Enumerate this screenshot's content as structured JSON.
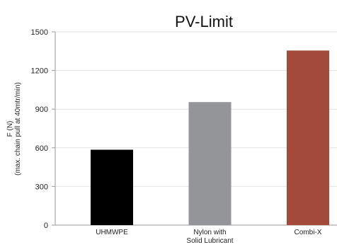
{
  "chart_data": {
    "type": "bar",
    "title": "PV-Limit",
    "ylabel_line1": "F (N)",
    "ylabel_line2": "(max. chain pull at 40mtr/min)",
    "xlabel": "",
    "ylim": [
      0,
      1500
    ],
    "yticks": [
      0,
      300,
      600,
      900,
      1200,
      1500
    ],
    "grid": true,
    "categories": [
      {
        "label_lines": [
          "UHMWPE"
        ],
        "value": 585,
        "color": "#000000"
      },
      {
        "label_lines": [
          "Nylon with",
          "Solid Lubricant"
        ],
        "value": 955,
        "color": "#939598"
      },
      {
        "label_lines": [
          "Combi-X"
        ],
        "value": 1355,
        "color": "#a34a3a"
      }
    ]
  }
}
